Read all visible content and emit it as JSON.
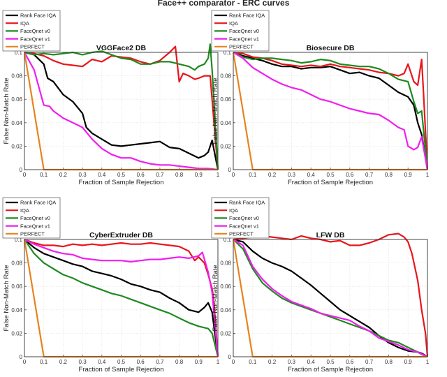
{
  "figure_title": "Face++ comparator - ERC curves",
  "colors": {
    "Rank Face IQA": "#000000",
    "IQA": "#e8161b",
    "FaceQnet v0": "#1f8a1f",
    "FaceQnet v1": "#f01ef0",
    "PERFECT": "#e8821e"
  },
  "chart_data": [
    {
      "type": "line",
      "title": "VGGFace2 DB",
      "xlabel": "Fraction of Sample Rejection",
      "ylabel": "False Non-Match Rate",
      "xlim": [
        0,
        1
      ],
      "ylim": [
        0,
        0.1
      ],
      "xticks": [
        "0",
        "0.1",
        "0.2",
        "0.3",
        "0.4",
        "0.5",
        "0.6",
        "0.7",
        "0.8",
        "0.9",
        "1"
      ],
      "yticks": [
        "0",
        "0.02",
        "0.04",
        "0.06",
        "0.08",
        "0.1"
      ],
      "grid": true,
      "legend": "top-left",
      "series": [
        {
          "name": "Rank Face IQA",
          "x": [
            0,
            0.05,
            0.1,
            0.12,
            0.15,
            0.2,
            0.25,
            0.3,
            0.32,
            0.35,
            0.4,
            0.45,
            0.5,
            0.55,
            0.6,
            0.65,
            0.7,
            0.75,
            0.8,
            0.85,
            0.9,
            0.93,
            0.95,
            0.97,
            1.0
          ],
          "y": [
            0.1,
            0.098,
            0.09,
            0.078,
            0.075,
            0.064,
            0.058,
            0.048,
            0.036,
            0.031,
            0.026,
            0.021,
            0.02,
            0.021,
            0.022,
            0.023,
            0.024,
            0.019,
            0.018,
            0.014,
            0.01,
            0.012,
            0.015,
            0.025,
            0.0
          ]
        },
        {
          "name": "IQA",
          "x": [
            0,
            0.05,
            0.1,
            0.15,
            0.2,
            0.25,
            0.3,
            0.35,
            0.4,
            0.45,
            0.5,
            0.55,
            0.6,
            0.65,
            0.7,
            0.75,
            0.78,
            0.8,
            0.82,
            0.85,
            0.88,
            0.9,
            0.93,
            0.96,
            1.0
          ],
          "y": [
            0.1,
            0.099,
            0.097,
            0.093,
            0.09,
            0.089,
            0.088,
            0.094,
            0.092,
            0.097,
            0.096,
            0.095,
            0.092,
            0.09,
            0.093,
            0.1,
            0.105,
            0.075,
            0.082,
            0.08,
            0.077,
            0.078,
            0.08,
            0.08,
            0.0
          ]
        },
        {
          "name": "FaceQnet v0",
          "x": [
            0,
            0.05,
            0.1,
            0.15,
            0.2,
            0.25,
            0.3,
            0.35,
            0.4,
            0.45,
            0.5,
            0.55,
            0.6,
            0.65,
            0.7,
            0.75,
            0.8,
            0.85,
            0.88,
            0.9,
            0.93,
            0.95,
            0.96,
            0.97,
            1.0
          ],
          "y": [
            0.1,
            0.098,
            0.099,
            0.098,
            0.099,
            0.1,
            0.098,
            0.1,
            0.101,
            0.098,
            0.095,
            0.094,
            0.09,
            0.09,
            0.092,
            0.092,
            0.09,
            0.088,
            0.085,
            0.088,
            0.09,
            0.095,
            0.107,
            0.085,
            0.0
          ]
        },
        {
          "name": "FaceQnet v1",
          "x": [
            0,
            0.05,
            0.1,
            0.13,
            0.15,
            0.2,
            0.25,
            0.3,
            0.35,
            0.4,
            0.45,
            0.5,
            0.55,
            0.6,
            0.65,
            0.7,
            0.75,
            0.8,
            0.85,
            0.9,
            0.95,
            1.0
          ],
          "y": [
            0.1,
            0.085,
            0.055,
            0.054,
            0.05,
            0.044,
            0.04,
            0.036,
            0.026,
            0.018,
            0.013,
            0.01,
            0.01,
            0.007,
            0.005,
            0.004,
            0.004,
            0.003,
            0.002,
            0.001,
            0.001,
            0.0
          ]
        },
        {
          "name": "PERFECT",
          "x": [
            0,
            0.1,
            1.0
          ],
          "y": [
            0.1,
            0.0,
            0.0
          ]
        }
      ]
    },
    {
      "type": "line",
      "title": "Biosecure DB",
      "xlabel": "Fraction of Sample Rejection",
      "ylabel": "False Non-Match Rate",
      "xlim": [
        0,
        1
      ],
      "ylim": [
        0,
        0.1
      ],
      "xticks": [
        "0",
        "0.1",
        "0.2",
        "0.3",
        "0.4",
        "0.5",
        "0.6",
        "0.7",
        "0.8",
        "0.9",
        "1"
      ],
      "yticks": [
        "0",
        "0.02",
        "0.04",
        "0.06",
        "0.08",
        "0.1"
      ],
      "grid": true,
      "legend": "top-left",
      "series": [
        {
          "name": "Rank Face IQA",
          "x": [
            0,
            0.05,
            0.1,
            0.15,
            0.2,
            0.25,
            0.3,
            0.35,
            0.4,
            0.45,
            0.5,
            0.55,
            0.6,
            0.65,
            0.7,
            0.75,
            0.8,
            0.85,
            0.9,
            0.93,
            0.95,
            0.97,
            1.0
          ],
          "y": [
            0.1,
            0.097,
            0.095,
            0.093,
            0.09,
            0.088,
            0.088,
            0.086,
            0.087,
            0.087,
            0.088,
            0.085,
            0.082,
            0.083,
            0.08,
            0.078,
            0.072,
            0.066,
            0.062,
            0.055,
            0.04,
            0.03,
            0.0
          ]
        },
        {
          "name": "IQA",
          "x": [
            0,
            0.05,
            0.1,
            0.15,
            0.2,
            0.25,
            0.3,
            0.35,
            0.4,
            0.45,
            0.5,
            0.55,
            0.6,
            0.65,
            0.7,
            0.75,
            0.8,
            0.85,
            0.88,
            0.9,
            0.93,
            0.95,
            0.97,
            0.98,
            1.0
          ],
          "y": [
            0.1,
            0.099,
            0.096,
            0.095,
            0.093,
            0.09,
            0.089,
            0.088,
            0.089,
            0.088,
            0.09,
            0.088,
            0.087,
            0.086,
            0.085,
            0.083,
            0.082,
            0.08,
            0.082,
            0.09,
            0.075,
            0.072,
            0.094,
            0.065,
            0.0
          ]
        },
        {
          "name": "FaceQnet v0",
          "x": [
            0,
            0.05,
            0.1,
            0.15,
            0.2,
            0.25,
            0.3,
            0.35,
            0.4,
            0.45,
            0.5,
            0.55,
            0.6,
            0.65,
            0.7,
            0.75,
            0.8,
            0.85,
            0.9,
            0.93,
            0.95,
            0.97,
            1.0
          ],
          "y": [
            0.1,
            0.096,
            0.094,
            0.095,
            0.095,
            0.094,
            0.093,
            0.091,
            0.092,
            0.094,
            0.093,
            0.09,
            0.089,
            0.088,
            0.088,
            0.086,
            0.082,
            0.077,
            0.075,
            0.058,
            0.048,
            0.05,
            0.0
          ]
        },
        {
          "name": "FaceQnet v1",
          "x": [
            0,
            0.05,
            0.1,
            0.15,
            0.2,
            0.25,
            0.3,
            0.35,
            0.4,
            0.45,
            0.5,
            0.55,
            0.6,
            0.65,
            0.7,
            0.75,
            0.8,
            0.85,
            0.88,
            0.9,
            0.93,
            0.95,
            0.97,
            1.0
          ],
          "y": [
            0.1,
            0.095,
            0.087,
            0.082,
            0.077,
            0.073,
            0.07,
            0.068,
            0.064,
            0.06,
            0.058,
            0.055,
            0.052,
            0.05,
            0.048,
            0.047,
            0.042,
            0.036,
            0.034,
            0.02,
            0.017,
            0.019,
            0.028,
            0.0
          ]
        },
        {
          "name": "PERFECT",
          "x": [
            0,
            0.1,
            1.0
          ],
          "y": [
            0.1,
            0.0,
            0.0
          ]
        }
      ]
    },
    {
      "type": "line",
      "title": "CyberExtruder DB",
      "xlabel": "Fraction of Sample Rejection",
      "ylabel": "False Non-Match Rate",
      "xlim": [
        0,
        1
      ],
      "ylim": [
        0,
        0.1
      ],
      "xticks": [
        "0",
        "0.1",
        "0.2",
        "0.3",
        "0.4",
        "0.5",
        "0.6",
        "0.7",
        "0.8",
        "0.9",
        "1"
      ],
      "yticks": [
        "0",
        "0.02",
        "0.04",
        "0.06",
        "0.08",
        "0.1"
      ],
      "grid": true,
      "legend": "top-left",
      "series": [
        {
          "name": "Rank Face IQA",
          "x": [
            0,
            0.05,
            0.1,
            0.15,
            0.2,
            0.25,
            0.3,
            0.35,
            0.4,
            0.45,
            0.5,
            0.55,
            0.6,
            0.65,
            0.7,
            0.75,
            0.8,
            0.85,
            0.9,
            0.93,
            0.95,
            0.97,
            1.0
          ],
          "y": [
            0.1,
            0.093,
            0.088,
            0.085,
            0.082,
            0.079,
            0.077,
            0.073,
            0.071,
            0.069,
            0.066,
            0.062,
            0.06,
            0.057,
            0.055,
            0.05,
            0.046,
            0.04,
            0.038,
            0.042,
            0.046,
            0.038,
            0.0
          ]
        },
        {
          "name": "IQA",
          "x": [
            0,
            0.05,
            0.1,
            0.15,
            0.2,
            0.25,
            0.3,
            0.35,
            0.4,
            0.45,
            0.5,
            0.55,
            0.6,
            0.65,
            0.7,
            0.75,
            0.8,
            0.85,
            0.88,
            0.9,
            0.93,
            0.95,
            0.97,
            0.98,
            1.0
          ],
          "y": [
            0.1,
            0.097,
            0.095,
            0.095,
            0.094,
            0.096,
            0.095,
            0.096,
            0.095,
            0.096,
            0.097,
            0.096,
            0.096,
            0.097,
            0.096,
            0.095,
            0.094,
            0.09,
            0.082,
            0.085,
            0.08,
            0.07,
            0.058,
            0.045,
            0.0
          ]
        },
        {
          "name": "FaceQnet v0",
          "x": [
            0,
            0.05,
            0.1,
            0.15,
            0.2,
            0.25,
            0.3,
            0.35,
            0.4,
            0.45,
            0.5,
            0.55,
            0.6,
            0.65,
            0.7,
            0.75,
            0.8,
            0.85,
            0.9,
            0.95,
            0.97,
            1.0
          ],
          "y": [
            0.1,
            0.088,
            0.08,
            0.075,
            0.07,
            0.067,
            0.063,
            0.06,
            0.057,
            0.054,
            0.052,
            0.049,
            0.046,
            0.043,
            0.04,
            0.037,
            0.033,
            0.029,
            0.026,
            0.024,
            0.02,
            0.0
          ]
        },
        {
          "name": "FaceQnet v1",
          "x": [
            0,
            0.05,
            0.1,
            0.15,
            0.2,
            0.25,
            0.3,
            0.35,
            0.4,
            0.45,
            0.5,
            0.55,
            0.6,
            0.65,
            0.7,
            0.75,
            0.8,
            0.85,
            0.9,
            0.92,
            0.95,
            0.97,
            1.0
          ],
          "y": [
            0.1,
            0.096,
            0.093,
            0.09,
            0.088,
            0.087,
            0.084,
            0.083,
            0.082,
            0.082,
            0.082,
            0.081,
            0.082,
            0.083,
            0.083,
            0.084,
            0.085,
            0.084,
            0.086,
            0.089,
            0.072,
            0.055,
            0.0
          ]
        },
        {
          "name": "PERFECT",
          "x": [
            0,
            0.1,
            1.0
          ],
          "y": [
            0.1,
            0.0,
            0.0
          ]
        }
      ]
    },
    {
      "type": "line",
      "title": "LFW DB",
      "xlabel": "Fraction of Sample Rejection",
      "ylabel": "False Non-Match Rate",
      "xlim": [
        0,
        1
      ],
      "ylim": [
        0,
        0.1
      ],
      "xticks": [
        "0",
        "0.1",
        "0.2",
        "0.3",
        "0.4",
        "0.5",
        "0.6",
        "0.7",
        "0.8",
        "0.9",
        "1"
      ],
      "yticks": [
        "0",
        "0.02",
        "0.04",
        "0.06",
        "0.08",
        "0.1"
      ],
      "grid": true,
      "legend": "top-left",
      "series": [
        {
          "name": "Rank Face IQA",
          "x": [
            0,
            0.05,
            0.1,
            0.15,
            0.2,
            0.25,
            0.3,
            0.35,
            0.4,
            0.45,
            0.5,
            0.55,
            0.6,
            0.65,
            0.7,
            0.75,
            0.8,
            0.85,
            0.9,
            0.95,
            0.97,
            1.0
          ],
          "y": [
            0.1,
            0.098,
            0.09,
            0.084,
            0.08,
            0.077,
            0.073,
            0.067,
            0.061,
            0.054,
            0.047,
            0.04,
            0.035,
            0.03,
            0.025,
            0.018,
            0.012,
            0.008,
            0.005,
            0.004,
            0.003,
            0.0
          ]
        },
        {
          "name": "IQA",
          "x": [
            0,
            0.05,
            0.1,
            0.15,
            0.2,
            0.25,
            0.3,
            0.35,
            0.4,
            0.45,
            0.5,
            0.55,
            0.6,
            0.65,
            0.7,
            0.75,
            0.8,
            0.85,
            0.88,
            0.9,
            0.92,
            0.95,
            0.97,
            0.99,
            1.0
          ],
          "y": [
            0.1,
            0.101,
            0.102,
            0.103,
            0.102,
            0.101,
            0.1,
            0.103,
            0.101,
            0.1,
            0.098,
            0.099,
            0.095,
            0.095,
            0.097,
            0.1,
            0.104,
            0.105,
            0.102,
            0.098,
            0.088,
            0.065,
            0.04,
            0.02,
            0.0
          ]
        },
        {
          "name": "FaceQnet v0",
          "x": [
            0,
            0.05,
            0.1,
            0.15,
            0.2,
            0.25,
            0.3,
            0.35,
            0.4,
            0.45,
            0.5,
            0.55,
            0.6,
            0.65,
            0.7,
            0.75,
            0.8,
            0.85,
            0.9,
            0.95,
            0.97,
            1.0
          ],
          "y": [
            0.1,
            0.092,
            0.075,
            0.063,
            0.056,
            0.05,
            0.046,
            0.043,
            0.04,
            0.037,
            0.034,
            0.031,
            0.028,
            0.025,
            0.022,
            0.018,
            0.014,
            0.012,
            0.008,
            0.004,
            0.002,
            0.0
          ]
        },
        {
          "name": "FaceQnet v1",
          "x": [
            0,
            0.05,
            0.1,
            0.15,
            0.2,
            0.25,
            0.3,
            0.35,
            0.4,
            0.45,
            0.5,
            0.55,
            0.6,
            0.65,
            0.7,
            0.75,
            0.8,
            0.85,
            0.9,
            0.95,
            1.0
          ],
          "y": [
            0.1,
            0.095,
            0.077,
            0.066,
            0.058,
            0.052,
            0.047,
            0.044,
            0.041,
            0.037,
            0.035,
            0.033,
            0.031,
            0.026,
            0.022,
            0.016,
            0.013,
            0.01,
            0.006,
            0.004,
            0.0
          ]
        },
        {
          "name": "PERFECT",
          "x": [
            0,
            0.1,
            1.0
          ],
          "y": [
            0.1,
            0.0,
            0.0
          ]
        }
      ]
    }
  ]
}
